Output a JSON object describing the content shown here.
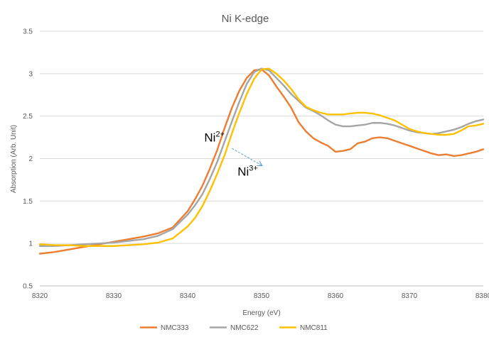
{
  "chart_data": {
    "type": "line",
    "title": "Ni K-edge",
    "xlabel": "Energy (eV)",
    "ylabel": "Absorption (Arb. Unit)",
    "xlim": [
      8320,
      8380
    ],
    "ylim": [
      0.5,
      3.5
    ],
    "x_ticks": [
      "8320",
      "8330",
      "8340",
      "8350",
      "8360",
      "8370",
      "8380"
    ],
    "y_ticks": [
      "0.5",
      "1",
      "1.5",
      "2",
      "2.5",
      "3",
      "3.5"
    ],
    "grid": "horizontal",
    "legend_position": "bottom",
    "series": [
      {
        "name": "NMC333",
        "color": "#ED7D31",
        "points": [
          [
            8320,
            0.88
          ],
          [
            8322,
            0.9
          ],
          [
            8324,
            0.93
          ],
          [
            8326,
            0.96
          ],
          [
            8328,
            0.99
          ],
          [
            8330,
            1.02
          ],
          [
            8332,
            1.05
          ],
          [
            8334,
            1.08
          ],
          [
            8336,
            1.12
          ],
          [
            8338,
            1.19
          ],
          [
            8340,
            1.38
          ],
          [
            8341,
            1.52
          ],
          [
            8342,
            1.68
          ],
          [
            8343,
            1.88
          ],
          [
            8344,
            2.1
          ],
          [
            8345,
            2.36
          ],
          [
            8346,
            2.6
          ],
          [
            8347,
            2.8
          ],
          [
            8348,
            2.95
          ],
          [
            8349,
            3.04
          ],
          [
            8350,
            3.05
          ],
          [
            8351,
            2.98
          ],
          [
            8352,
            2.85
          ],
          [
            8353,
            2.73
          ],
          [
            8354,
            2.6
          ],
          [
            8355,
            2.43
          ],
          [
            8356,
            2.32
          ],
          [
            8357,
            2.24
          ],
          [
            8358,
            2.19
          ],
          [
            8359,
            2.15
          ],
          [
            8360,
            2.08
          ],
          [
            8361,
            2.09
          ],
          [
            8362,
            2.11
          ],
          [
            8363,
            2.18
          ],
          [
            8364,
            2.2
          ],
          [
            8365,
            2.24
          ],
          [
            8366,
            2.25
          ],
          [
            8367,
            2.24
          ],
          [
            8368,
            2.21
          ],
          [
            8369,
            2.18
          ],
          [
            8370,
            2.15
          ],
          [
            8371,
            2.12
          ],
          [
            8372,
            2.09
          ],
          [
            8373,
            2.06
          ],
          [
            8374,
            2.04
          ],
          [
            8375,
            2.05
          ],
          [
            8376,
            2.03
          ],
          [
            8377,
            2.04
          ],
          [
            8378,
            2.06
          ],
          [
            8379,
            2.08
          ],
          [
            8380,
            2.11
          ]
        ]
      },
      {
        "name": "NMC622",
        "color": "#A5A5A5",
        "points": [
          [
            8320,
            0.97
          ],
          [
            8322,
            0.97
          ],
          [
            8324,
            0.98
          ],
          [
            8326,
            0.99
          ],
          [
            8328,
            1.0
          ],
          [
            8330,
            1.01
          ],
          [
            8332,
            1.03
          ],
          [
            8334,
            1.05
          ],
          [
            8336,
            1.09
          ],
          [
            8338,
            1.17
          ],
          [
            8340,
            1.34
          ],
          [
            8341,
            1.45
          ],
          [
            8342,
            1.58
          ],
          [
            8343,
            1.76
          ],
          [
            8344,
            1.96
          ],
          [
            8345,
            2.2
          ],
          [
            8346,
            2.44
          ],
          [
            8347,
            2.67
          ],
          [
            8348,
            2.88
          ],
          [
            8349,
            3.02
          ],
          [
            8350,
            3.06
          ],
          [
            8351,
            3.04
          ],
          [
            8352,
            2.95
          ],
          [
            8353,
            2.86
          ],
          [
            8354,
            2.76
          ],
          [
            8355,
            2.68
          ],
          [
            8356,
            2.6
          ],
          [
            8357,
            2.56
          ],
          [
            8358,
            2.51
          ],
          [
            8359,
            2.45
          ],
          [
            8360,
            2.4
          ],
          [
            8361,
            2.38
          ],
          [
            8362,
            2.38
          ],
          [
            8363,
            2.39
          ],
          [
            8364,
            2.4
          ],
          [
            8365,
            2.42
          ],
          [
            8366,
            2.42
          ],
          [
            8367,
            2.41
          ],
          [
            8368,
            2.39
          ],
          [
            8369,
            2.36
          ],
          [
            8370,
            2.33
          ],
          [
            8371,
            2.31
          ],
          [
            8372,
            2.3
          ],
          [
            8373,
            2.29
          ],
          [
            8374,
            2.3
          ],
          [
            8375,
            2.32
          ],
          [
            8376,
            2.34
          ],
          [
            8377,
            2.37
          ],
          [
            8378,
            2.41
          ],
          [
            8379,
            2.44
          ],
          [
            8380,
            2.46
          ]
        ]
      },
      {
        "name": "NMC811",
        "color": "#FFC000",
        "points": [
          [
            8320,
            0.99
          ],
          [
            8322,
            0.98
          ],
          [
            8324,
            0.98
          ],
          [
            8326,
            0.97
          ],
          [
            8328,
            0.97
          ],
          [
            8330,
            0.97
          ],
          [
            8332,
            0.98
          ],
          [
            8334,
            0.99
          ],
          [
            8336,
            1.01
          ],
          [
            8338,
            1.06
          ],
          [
            8340,
            1.2
          ],
          [
            8341,
            1.3
          ],
          [
            8342,
            1.44
          ],
          [
            8343,
            1.62
          ],
          [
            8344,
            1.82
          ],
          [
            8345,
            2.04
          ],
          [
            8346,
            2.3
          ],
          [
            8347,
            2.54
          ],
          [
            8348,
            2.76
          ],
          [
            8349,
            2.94
          ],
          [
            8350,
            3.05
          ],
          [
            8351,
            3.06
          ],
          [
            8352,
            3.0
          ],
          [
            8353,
            2.92
          ],
          [
            8354,
            2.82
          ],
          [
            8355,
            2.7
          ],
          [
            8356,
            2.61
          ],
          [
            8357,
            2.57
          ],
          [
            8358,
            2.54
          ],
          [
            8359,
            2.52
          ],
          [
            8360,
            2.52
          ],
          [
            8361,
            2.52
          ],
          [
            8362,
            2.53
          ],
          [
            8363,
            2.54
          ],
          [
            8364,
            2.54
          ],
          [
            8365,
            2.53
          ],
          [
            8366,
            2.51
          ],
          [
            8367,
            2.48
          ],
          [
            8368,
            2.45
          ],
          [
            8369,
            2.4
          ],
          [
            8370,
            2.35
          ],
          [
            8371,
            2.32
          ],
          [
            8372,
            2.3
          ],
          [
            8373,
            2.29
          ],
          [
            8374,
            2.28
          ],
          [
            8375,
            2.28
          ],
          [
            8376,
            2.29
          ],
          [
            8377,
            2.33
          ],
          [
            8378,
            2.38
          ],
          [
            8379,
            2.39
          ],
          [
            8380,
            2.41
          ]
        ]
      }
    ],
    "annotations": [
      {
        "base": "Ni",
        "sup": "2+",
        "x": 8345,
        "y": 2.2
      },
      {
        "base": "Ni",
        "sup": "3+",
        "x": 8349.5,
        "y": 1.8
      }
    ],
    "arrow": {
      "from": [
        8346,
        2.12
      ],
      "to": [
        8350,
        1.92
      ],
      "color": "#5B9BD5"
    }
  }
}
